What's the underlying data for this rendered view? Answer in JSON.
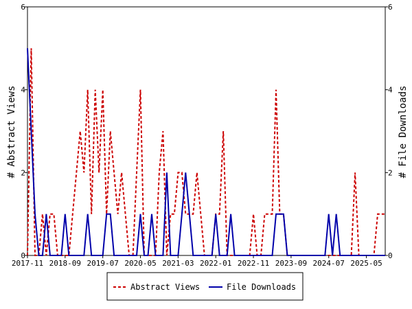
{
  "chart_data": {
    "type": "line",
    "title": "",
    "ylabel_left": "# Abstract Views",
    "ylabel_right": "# File Downloads",
    "xlabel": "",
    "ylim": [
      0,
      6
    ],
    "y_ticks": [
      "0",
      "2",
      "4",
      "6"
    ],
    "x_ticks": [
      "2017-11",
      "2018-09",
      "2019-07",
      "2020-05",
      "2021-03",
      "2022-01",
      "2022-11",
      "2023-09",
      "2024-07",
      "2025-05"
    ],
    "x_start": "2017-11",
    "x_end": "2025-10",
    "legend_position": "bottom",
    "grid": false,
    "series": [
      {
        "name": "Abstract Views",
        "color": "#cc0000",
        "style": "dashed",
        "x": [
          "2017-11",
          "2017-12",
          "2018-01",
          "2018-02",
          "2018-03",
          "2018-04",
          "2018-05",
          "2018-06",
          "2018-07",
          "2018-08",
          "2018-09",
          "2018-10",
          "2018-11",
          "2018-12",
          "2019-01",
          "2019-02",
          "2019-03",
          "2019-04",
          "2019-05",
          "2019-06",
          "2019-07",
          "2019-08",
          "2019-09",
          "2019-10",
          "2019-11",
          "2019-12",
          "2020-01",
          "2020-02",
          "2020-03",
          "2020-04",
          "2020-05",
          "2020-06",
          "2020-07",
          "2020-08",
          "2020-09",
          "2020-10",
          "2020-11",
          "2020-12",
          "2021-01",
          "2021-02",
          "2021-03",
          "2021-04",
          "2021-05",
          "2021-06",
          "2021-07",
          "2021-08",
          "2021-09",
          "2021-10",
          "2021-11",
          "2021-12",
          "2022-01",
          "2022-02",
          "2022-03",
          "2022-04",
          "2022-05",
          "2022-06",
          "2022-07",
          "2022-08",
          "2022-09",
          "2022-10",
          "2022-11",
          "2022-12",
          "2023-01",
          "2023-02",
          "2023-03",
          "2023-04",
          "2023-05",
          "2023-06",
          "2023-07",
          "2023-08",
          "2023-09",
          "2023-10",
          "2023-11",
          "2023-12",
          "2024-01",
          "2024-02",
          "2024-03",
          "2024-04",
          "2024-05",
          "2024-06",
          "2024-07",
          "2024-08",
          "2024-09",
          "2024-10",
          "2024-11",
          "2024-12",
          "2025-01",
          "2025-02",
          "2025-03",
          "2025-04",
          "2025-05",
          "2025-06",
          "2025-07",
          "2025-08",
          "2025-09",
          "2025-10"
        ],
        "values": [
          0,
          5,
          0,
          0,
          1,
          0,
          1,
          1,
          0,
          0,
          0,
          0,
          1,
          2,
          3,
          2,
          4,
          1,
          4,
          2,
          4,
          1,
          3,
          2,
          1,
          2,
          1,
          0,
          0,
          2,
          4,
          0,
          0,
          0,
          0,
          2,
          3,
          0,
          1,
          1,
          2,
          2,
          1,
          1,
          1,
          2,
          1,
          0,
          0,
          0,
          1,
          1,
          3,
          0,
          0,
          0,
          0,
          0,
          0,
          0,
          1,
          0,
          0,
          1,
          1,
          1,
          4,
          1,
          1,
          0,
          0,
          0,
          0,
          0,
          0,
          0,
          0,
          0,
          0,
          0,
          0,
          0,
          0,
          0,
          0,
          0,
          0,
          2,
          0,
          0,
          0,
          0,
          0,
          1,
          1,
          1
        ]
      },
      {
        "name": "File Downloads",
        "color": "#0000aa",
        "style": "solid",
        "x": [
          "2017-11",
          "2017-12",
          "2018-01",
          "2018-02",
          "2018-03",
          "2018-04",
          "2018-05",
          "2018-06",
          "2018-07",
          "2018-08",
          "2018-09",
          "2018-10",
          "2018-11",
          "2018-12",
          "2019-01",
          "2019-02",
          "2019-03",
          "2019-04",
          "2019-05",
          "2019-06",
          "2019-07",
          "2019-08",
          "2019-09",
          "2019-10",
          "2019-11",
          "2019-12",
          "2020-01",
          "2020-02",
          "2020-03",
          "2020-04",
          "2020-05",
          "2020-06",
          "2020-07",
          "2020-08",
          "2020-09",
          "2020-10",
          "2020-11",
          "2020-12",
          "2021-01",
          "2021-02",
          "2021-03",
          "2021-04",
          "2021-05",
          "2021-06",
          "2021-07",
          "2021-08",
          "2021-09",
          "2021-10",
          "2021-11",
          "2021-12",
          "2022-01",
          "2022-02",
          "2022-03",
          "2022-04",
          "2022-05",
          "2022-06",
          "2022-07",
          "2022-08",
          "2022-09",
          "2022-10",
          "2022-11",
          "2022-12",
          "2023-01",
          "2023-02",
          "2023-03",
          "2023-04",
          "2023-05",
          "2023-06",
          "2023-07",
          "2023-08",
          "2023-09",
          "2023-10",
          "2023-11",
          "2023-12",
          "2024-01",
          "2024-02",
          "2024-03",
          "2024-04",
          "2024-05",
          "2024-06",
          "2024-07",
          "2024-08",
          "2024-09",
          "2024-10",
          "2024-11",
          "2024-12",
          "2025-01",
          "2025-02",
          "2025-03",
          "2025-04",
          "2025-05",
          "2025-06",
          "2025-07",
          "2025-08",
          "2025-09",
          "2025-10"
        ],
        "values": [
          5,
          3,
          1,
          0,
          0,
          1,
          0,
          0,
          0,
          0,
          1,
          0,
          0,
          0,
          0,
          0,
          1,
          0,
          0,
          0,
          0,
          1,
          1,
          0,
          0,
          0,
          0,
          0,
          0,
          0,
          1,
          0,
          0,
          1,
          0,
          0,
          0,
          2,
          0,
          0,
          0,
          1,
          2,
          1,
          0,
          0,
          0,
          0,
          0,
          0,
          1,
          0,
          0,
          0,
          1,
          0,
          0,
          0,
          0,
          0,
          0,
          0,
          0,
          0,
          0,
          0,
          1,
          1,
          1,
          0,
          0,
          0,
          0,
          0,
          0,
          0,
          0,
          0,
          0,
          0,
          1,
          0,
          1,
          0,
          0,
          0,
          0,
          0,
          0,
          0,
          0,
          0,
          0,
          0,
          0,
          0
        ]
      }
    ]
  }
}
